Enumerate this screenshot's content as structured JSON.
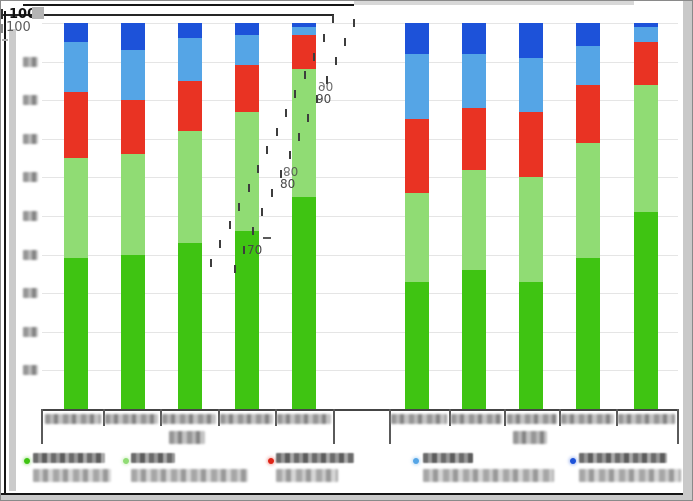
{
  "window": {
    "background": "#ffffff",
    "frame_gray": "#c9c9c9",
    "border_black": "#151515"
  },
  "y_axis": {
    "max_label": "100",
    "max_label_ghost": "100",
    "tick_step": 10,
    "tick_labels_legible": false,
    "blurred_tick_count": 9
  },
  "annotation": {
    "description": "skewed dashed ghost axis overlay between bar groups",
    "labels": [
      "90",
      "80",
      "70"
    ]
  },
  "x_axis": {
    "groups": 2,
    "bars_per_group": 5,
    "bar_labels_legible": false,
    "group_labels_legible": false
  },
  "legend": {
    "lines_per_entry": 2,
    "labels_legible": false,
    "entries": [
      {
        "swatch_color": "#3fc412",
        "label": ""
      },
      {
        "swatch_color": "#90dc74",
        "label": ""
      },
      {
        "swatch_color": "#df2417",
        "label": ""
      },
      {
        "swatch_color": "#55a5e6",
        "label": ""
      },
      {
        "swatch_color": "#1d52d9",
        "label": ""
      }
    ]
  },
  "chart_data": {
    "type": "bar",
    "stacked": true,
    "ylim": [
      0,
      100
    ],
    "ytick_step": 10,
    "grid": true,
    "legend_position": "bottom",
    "categories": [
      "g1-b1",
      "g1-b2",
      "g1-b3",
      "g1-b4",
      "g1-b5",
      "g2-b1",
      "g2-b2",
      "g2-b3",
      "g2-b4",
      "g2-b5"
    ],
    "category_labels_legible": false,
    "series": [
      {
        "name": "series-green",
        "color": "#3fc412",
        "values": [
          39,
          40,
          43,
          46,
          55,
          33,
          36,
          33,
          39,
          51
        ]
      },
      {
        "name": "series-light-green",
        "color": "#90dc74",
        "values": [
          26,
          26,
          29,
          31,
          33,
          23,
          26,
          27,
          30,
          33
        ]
      },
      {
        "name": "series-red",
        "color": "#e93323",
        "values": [
          17,
          14,
          13,
          12,
          9,
          19,
          16,
          17,
          15,
          11
        ]
      },
      {
        "name": "series-light-blue",
        "color": "#55a5e6",
        "values": [
          13,
          13,
          11,
          8,
          2,
          17,
          14,
          14,
          10,
          4
        ]
      },
      {
        "name": "series-dark-blue",
        "color": "#1d52d9",
        "values": [
          5,
          7,
          4,
          3,
          1,
          8,
          8,
          9,
          6,
          1
        ]
      }
    ]
  }
}
